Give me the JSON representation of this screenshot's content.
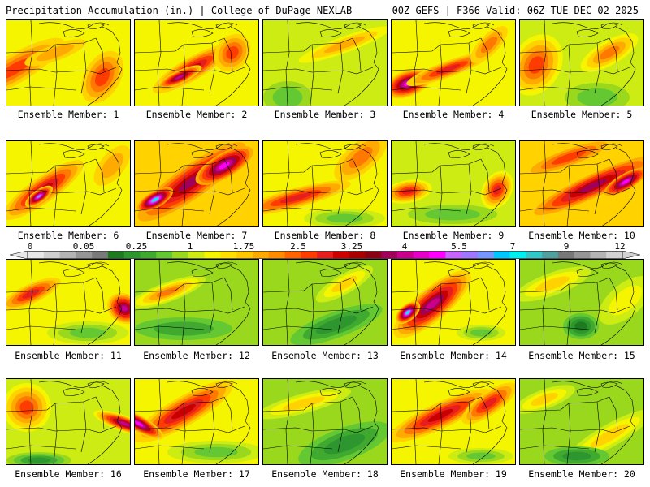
{
  "header": {
    "left_title": "Precipitation Accumulation (in.) | College of DuPage NEXLAB",
    "right_title": "00Z GEFS | F366 Valid: 06Z TUE DEC 02 2025"
  },
  "colorbar": {
    "tick_labels": [
      "0",
      "0.05",
      "0.25",
      "1",
      "1.75",
      "2.5",
      "3.25",
      "4",
      "5.5",
      "7",
      "9",
      "12"
    ],
    "colors": [
      "#e8e8e8",
      "#d0d0d0",
      "#b4b4b4",
      "#969696",
      "#7a7a7a",
      "#1e7a1e",
      "#2e962e",
      "#3faa2f",
      "#64c832",
      "#9ad81e",
      "#ccec14",
      "#f5f500",
      "#ffe000",
      "#ffc800",
      "#ffaa00",
      "#ff8c00",
      "#ff6400",
      "#ff3c00",
      "#e61e1e",
      "#cc0000",
      "#a80000",
      "#8c0014",
      "#a0005a",
      "#c8008c",
      "#e600c8",
      "#ff00ff",
      "#c864ff",
      "#a078ff",
      "#7896ff",
      "#00c8ff",
      "#00f0f0",
      "#32c8c8",
      "#50a0a0",
      "#787878",
      "#969696",
      "#b4b4b4",
      "#d2d2d2"
    ]
  },
  "members": [
    {
      "label": "Ensemble Member: 1"
    },
    {
      "label": "Ensemble Member: 2"
    },
    {
      "label": "Ensemble Member: 3"
    },
    {
      "label": "Ensemble Member: 4"
    },
    {
      "label": "Ensemble Member: 5"
    },
    {
      "label": "Ensemble Member: 6"
    },
    {
      "label": "Ensemble Member: 7"
    },
    {
      "label": "Ensemble Member: 8"
    },
    {
      "label": "Ensemble Member: 9"
    },
    {
      "label": "Ensemble Member: 10"
    },
    {
      "label": "Ensemble Member: 11"
    },
    {
      "label": "Ensemble Member: 12"
    },
    {
      "label": "Ensemble Member: 13"
    },
    {
      "label": "Ensemble Member: 14"
    },
    {
      "label": "Ensemble Member: 15"
    },
    {
      "label": "Ensemble Member: 16"
    },
    {
      "label": "Ensemble Member: 17"
    },
    {
      "label": "Ensemble Member: 18"
    },
    {
      "label": "Ensemble Member: 19"
    },
    {
      "label": "Ensemble Member: 20"
    }
  ]
}
